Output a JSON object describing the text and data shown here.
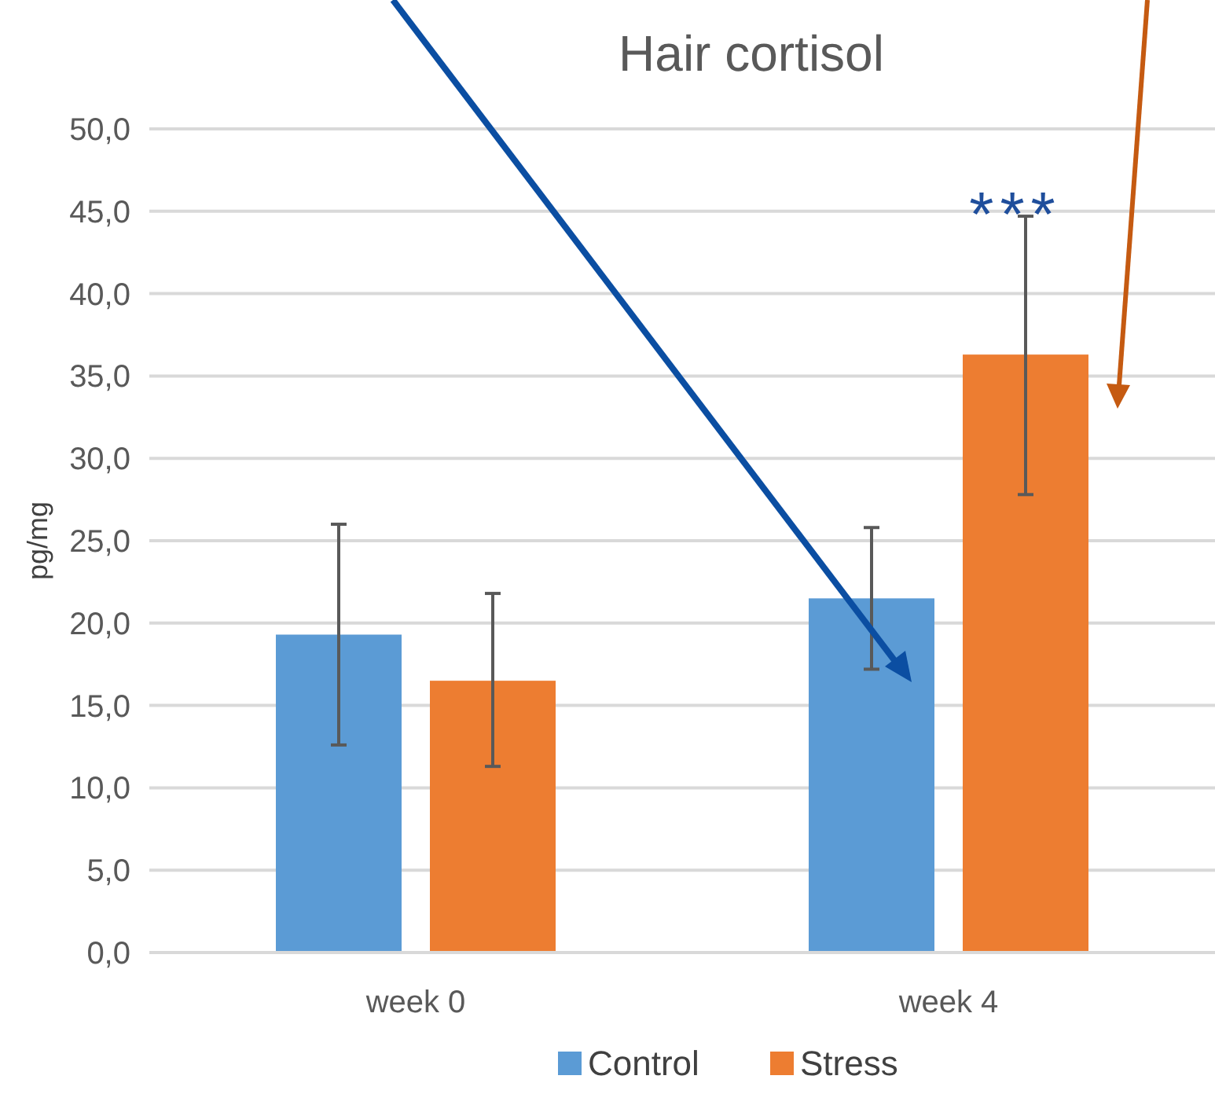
{
  "chart_data": {
    "type": "bar",
    "title": "Hair cortisol",
    "ylabel": "pg/mg",
    "categories": [
      "week 0",
      "week 4"
    ],
    "series": [
      {
        "name": "Control",
        "color": "#5b9bd5",
        "values": [
          19.3,
          21.5
        ],
        "errors": [
          [
            12.6,
            26.0
          ],
          [
            17.2,
            25.8
          ]
        ]
      },
      {
        "name": "Stress",
        "color": "#ed7d31",
        "values": [
          16.5,
          36.3
        ],
        "errors": [
          [
            11.3,
            21.8
          ],
          [
            27.8,
            44.7
          ]
        ]
      }
    ],
    "ylim": [
      0,
      50
    ],
    "yticks": [
      {
        "value": 0,
        "label": "0,0"
      },
      {
        "value": 5,
        "label": "5,0"
      },
      {
        "value": 10,
        "label": "10,0"
      },
      {
        "value": 15,
        "label": "15,0"
      },
      {
        "value": 20,
        "label": "20,0"
      },
      {
        "value": 25,
        "label": "25,0"
      },
      {
        "value": 30,
        "label": "30,0"
      },
      {
        "value": 35,
        "label": "35,0"
      },
      {
        "value": 40,
        "label": "40,0"
      },
      {
        "value": 45,
        "label": "45,0"
      },
      {
        "value": 50,
        "label": "50,0"
      }
    ],
    "annotations": [
      "***"
    ],
    "grid": "y",
    "legend": "bottom"
  }
}
